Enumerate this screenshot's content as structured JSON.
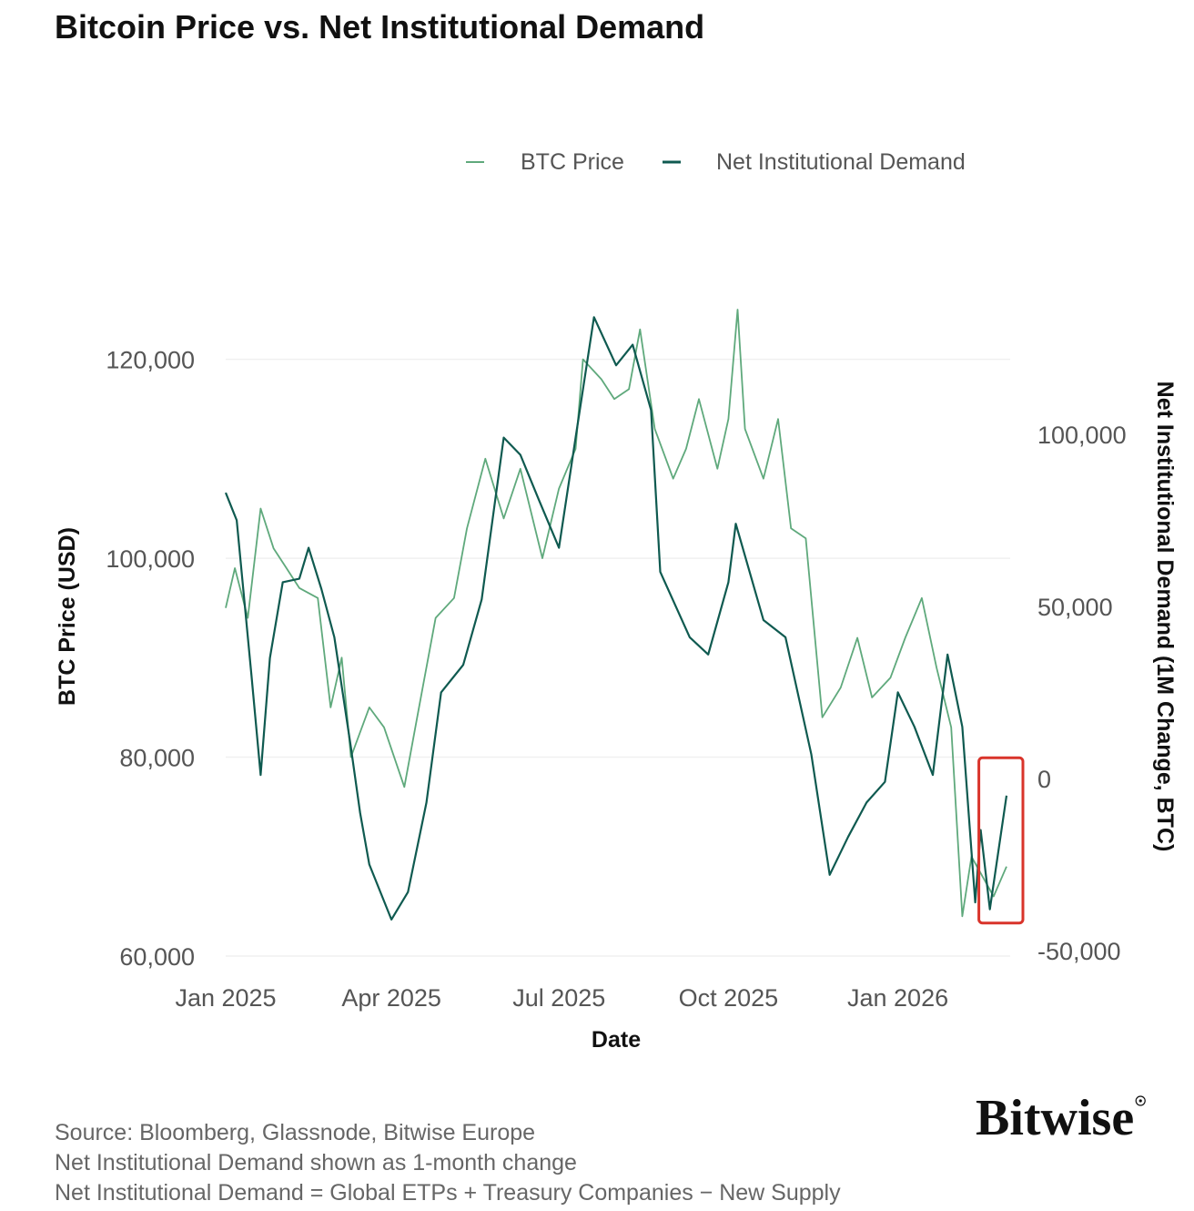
{
  "chart_data": {
    "type": "line",
    "title": "Bitcoin Price vs. Net Institutional Demand",
    "xlabel": "Date",
    "ylabel": "BTC Price (USD)",
    "y2label": "Net Institutional Demand (1M Change, BTC)",
    "x_ticks": [
      {
        "label": "Jan 2025",
        "date": "2025-01-01"
      },
      {
        "label": "Apr 2025",
        "date": "2025-04-01"
      },
      {
        "label": "Jul 2025",
        "date": "2025-07-01"
      },
      {
        "label": "Oct 2025",
        "date": "2025-10-01"
      },
      {
        "label": "Jan 2026",
        "date": "2026-01-01"
      }
    ],
    "xlim": [
      "2025-01-01",
      "2026-03-03"
    ],
    "ylim": [
      60000,
      125000
    ],
    "y2lim": [
      -51600,
      136200
    ],
    "y_ticks": [
      {
        "v": 60000,
        "label": "60,000"
      },
      {
        "v": 80000,
        "label": "80,000"
      },
      {
        "v": 100000,
        "label": "100,000"
      },
      {
        "v": 120000,
        "label": "120,000"
      }
    ],
    "y2_ticks": [
      {
        "v": -50000,
        "label": "-50,000"
      },
      {
        "v": 0,
        "label": "0"
      },
      {
        "v": 50000,
        "label": "50,000"
      },
      {
        "v": 100000,
        "label": "100,000"
      }
    ],
    "grid": true,
    "legend_position": "top-right",
    "series": [
      {
        "name": "BTC Price",
        "axis": "left",
        "color": "#5fa97c",
        "points": [
          [
            "2025-01-01",
            95000
          ],
          [
            "2025-01-06",
            99000
          ],
          [
            "2025-01-13",
            94000
          ],
          [
            "2025-01-20",
            105000
          ],
          [
            "2025-01-27",
            101000
          ],
          [
            "2025-02-03",
            99000
          ],
          [
            "2025-02-10",
            97000
          ],
          [
            "2025-02-20",
            96000
          ],
          [
            "2025-02-27",
            85000
          ],
          [
            "2025-03-05",
            90000
          ],
          [
            "2025-03-10",
            80000
          ],
          [
            "2025-03-20",
            85000
          ],
          [
            "2025-03-28",
            83000
          ],
          [
            "2025-04-08",
            77000
          ],
          [
            "2025-04-15",
            84000
          ],
          [
            "2025-04-25",
            94000
          ],
          [
            "2025-05-05",
            96000
          ],
          [
            "2025-05-12",
            103000
          ],
          [
            "2025-05-22",
            110000
          ],
          [
            "2025-06-01",
            104000
          ],
          [
            "2025-06-10",
            109000
          ],
          [
            "2025-06-22",
            100000
          ],
          [
            "2025-07-01",
            107000
          ],
          [
            "2025-07-10",
            111000
          ],
          [
            "2025-07-14",
            120000
          ],
          [
            "2025-07-24",
            118000
          ],
          [
            "2025-07-31",
            116000
          ],
          [
            "2025-08-08",
            117000
          ],
          [
            "2025-08-14",
            123000
          ],
          [
            "2025-08-22",
            113000
          ],
          [
            "2025-09-01",
            108000
          ],
          [
            "2025-09-08",
            111000
          ],
          [
            "2025-09-15",
            116000
          ],
          [
            "2025-09-25",
            109000
          ],
          [
            "2025-10-01",
            114000
          ],
          [
            "2025-10-06",
            125000
          ],
          [
            "2025-10-10",
            113000
          ],
          [
            "2025-10-20",
            108000
          ],
          [
            "2025-10-28",
            114000
          ],
          [
            "2025-11-04",
            103000
          ],
          [
            "2025-11-12",
            102000
          ],
          [
            "2025-11-21",
            84000
          ],
          [
            "2025-12-01",
            87000
          ],
          [
            "2025-12-10",
            92000
          ],
          [
            "2025-12-18",
            86000
          ],
          [
            "2025-12-28",
            88000
          ],
          [
            "2026-01-05",
            92000
          ],
          [
            "2026-01-14",
            96000
          ],
          [
            "2026-01-22",
            89000
          ],
          [
            "2026-01-30",
            83000
          ],
          [
            "2026-02-05",
            64000
          ],
          [
            "2026-02-10",
            70000
          ],
          [
            "2026-02-16",
            68000
          ],
          [
            "2026-02-22",
            66000
          ],
          [
            "2026-03-01",
            69000
          ]
        ]
      },
      {
        "name": "Net Institutional Demand",
        "axis": "right",
        "color": "#0f5a50",
        "points": [
          [
            "2025-01-01",
            83000
          ],
          [
            "2025-01-07",
            75000
          ],
          [
            "2025-01-15",
            30000
          ],
          [
            "2025-01-20",
            1000
          ],
          [
            "2025-01-25",
            35000
          ],
          [
            "2025-02-01",
            57000
          ],
          [
            "2025-02-10",
            58000
          ],
          [
            "2025-02-15",
            67000
          ],
          [
            "2025-02-22",
            55000
          ],
          [
            "2025-03-01",
            41000
          ],
          [
            "2025-03-10",
            9000
          ],
          [
            "2025-03-15",
            -10000
          ],
          [
            "2025-03-20",
            -25000
          ],
          [
            "2025-04-01",
            -41000
          ],
          [
            "2025-04-10",
            -33000
          ],
          [
            "2025-04-20",
            -7000
          ],
          [
            "2025-04-28",
            25000
          ],
          [
            "2025-05-10",
            33000
          ],
          [
            "2025-05-20",
            52000
          ],
          [
            "2025-06-01",
            99000
          ],
          [
            "2025-06-10",
            94000
          ],
          [
            "2025-06-20",
            81000
          ],
          [
            "2025-07-01",
            67000
          ],
          [
            "2025-07-10",
            99000
          ],
          [
            "2025-07-20",
            134000
          ],
          [
            "2025-08-01",
            120000
          ],
          [
            "2025-08-10",
            126000
          ],
          [
            "2025-08-20",
            107000
          ],
          [
            "2025-08-25",
            60000
          ],
          [
            "2025-09-10",
            41000
          ],
          [
            "2025-09-20",
            36000
          ],
          [
            "2025-10-01",
            57000
          ],
          [
            "2025-10-05",
            74000
          ],
          [
            "2025-10-20",
            46000
          ],
          [
            "2025-11-01",
            41000
          ],
          [
            "2025-11-15",
            7000
          ],
          [
            "2025-11-25",
            -28000
          ],
          [
            "2025-12-05",
            -17000
          ],
          [
            "2025-12-15",
            -7000
          ],
          [
            "2025-12-25",
            -1000
          ],
          [
            "2026-01-01",
            25000
          ],
          [
            "2026-01-10",
            15000
          ],
          [
            "2026-01-20",
            1000
          ],
          [
            "2026-01-28",
            36000
          ],
          [
            "2026-02-05",
            15000
          ],
          [
            "2026-02-12",
            -36000
          ],
          [
            "2026-02-15",
            -15000
          ],
          [
            "2026-02-20",
            -38000
          ],
          [
            "2026-03-01",
            -5000
          ]
        ]
      }
    ],
    "annotation": {
      "type": "highlight-box",
      "color": "#d9342b",
      "from": "2026-02-14",
      "to": "2026-03-03",
      "ymin": -42000,
      "ymax": 6000
    }
  },
  "notes": [
    "Source: Bloomberg, Glassnode, Bitwise Europe",
    "Net Institutional Demand shown as 1-month change",
    "Net Institutional Demand = Global ETPs + Treasury Companies − New Supply"
  ],
  "logo": "Bitwise"
}
